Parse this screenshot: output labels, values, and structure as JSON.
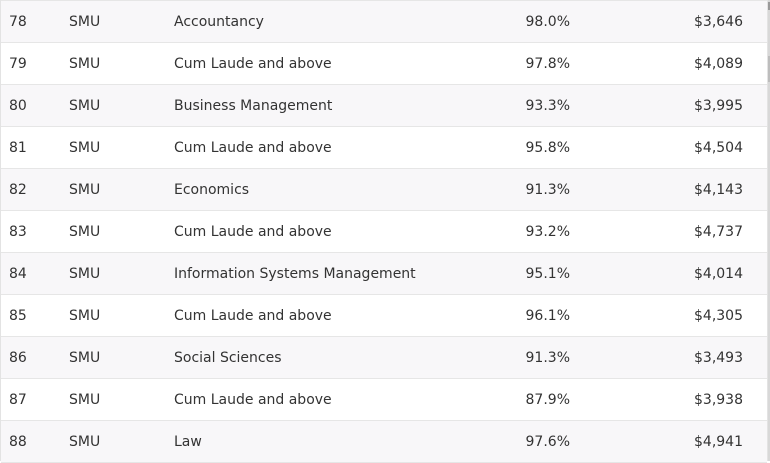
{
  "rows": [
    {
      "rank": "78",
      "university": "SMU",
      "course": "Accountancy",
      "employment": "98.0%",
      "salary": "$3,646"
    },
    {
      "rank": "79",
      "university": "SMU",
      "course": "Cum Laude and above",
      "employment": "97.8%",
      "salary": "$4,089"
    },
    {
      "rank": "80",
      "university": "SMU",
      "course": "Business Management",
      "employment": "93.3%",
      "salary": "$3,995"
    },
    {
      "rank": "81",
      "university": "SMU",
      "course": "Cum Laude and above",
      "employment": "95.8%",
      "salary": "$4,504"
    },
    {
      "rank": "82",
      "university": "SMU",
      "course": "Economics",
      "employment": "91.3%",
      "salary": "$4,143"
    },
    {
      "rank": "83",
      "university": "SMU",
      "course": "Cum Laude and above",
      "employment": "93.2%",
      "salary": "$4,737"
    },
    {
      "rank": "84",
      "university": "SMU",
      "course": "Information Systems Management",
      "employment": "95.1%",
      "salary": "$4,014"
    },
    {
      "rank": "85",
      "university": "SMU",
      "course": "Cum Laude and above",
      "employment": "96.1%",
      "salary": "$4,305"
    },
    {
      "rank": "86",
      "university": "SMU",
      "course": "Social Sciences",
      "employment": "91.3%",
      "salary": "$3,493"
    },
    {
      "rank": "87",
      "university": "SMU",
      "course": "Cum Laude and above",
      "employment": "87.9%",
      "salary": "$3,938"
    },
    {
      "rank": "88",
      "university": "SMU",
      "course": "Law",
      "employment": "97.6%",
      "salary": "$4,941"
    }
  ],
  "colors": {
    "row_shade": "#f8f7f9",
    "border": "#e6e6e6",
    "text": "#333333"
  }
}
